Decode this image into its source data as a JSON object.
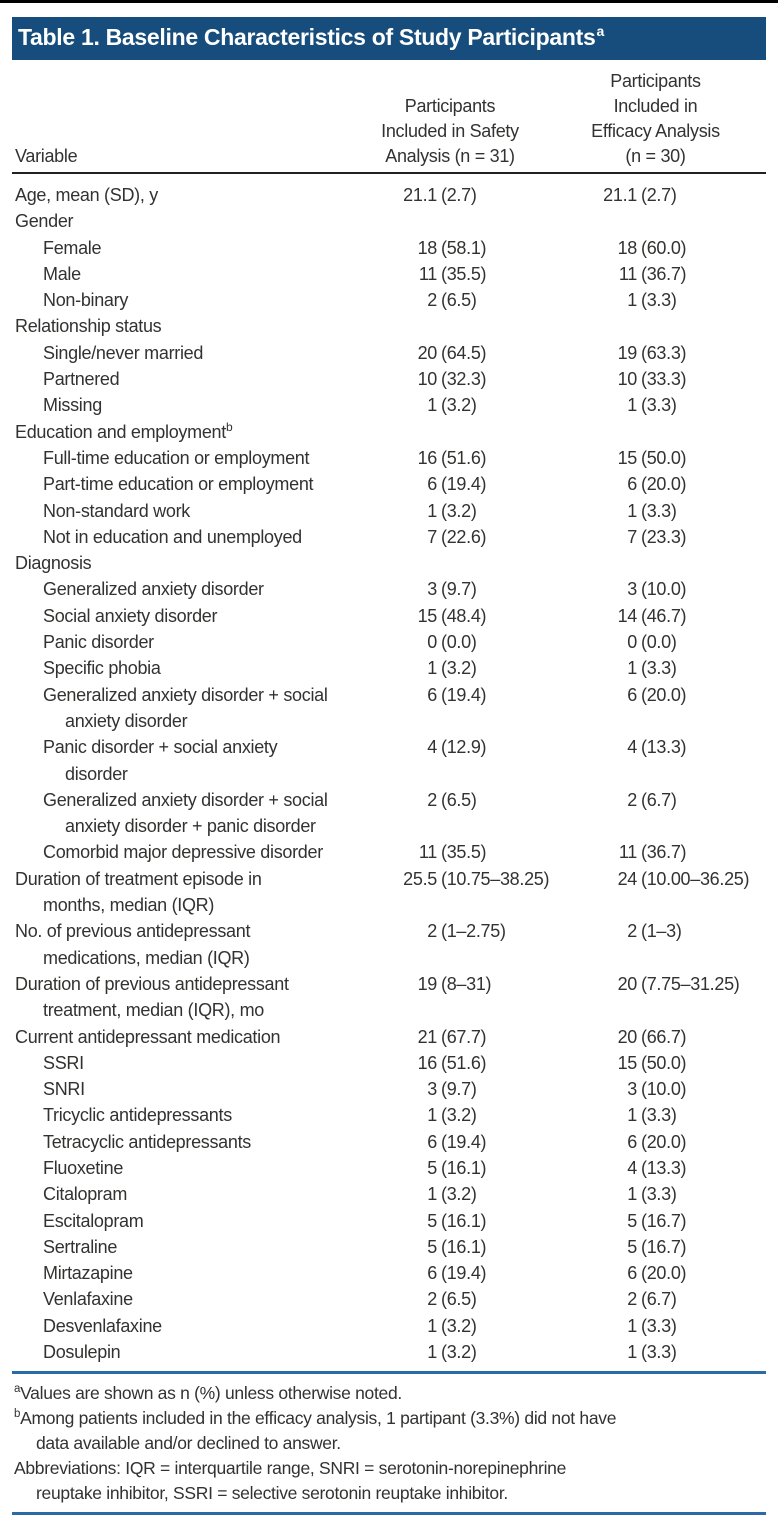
{
  "title": {
    "text": "Table 1. Baseline Characteristics of Study Participants",
    "sup": "a"
  },
  "colors": {
    "title_bar": "#174d7c",
    "rule_blue": "#2b6ba5",
    "rule_dark": "#222120",
    "text": "#333231",
    "top_strip": "#000000"
  },
  "columns": {
    "variable": "Variable",
    "safety_lines": [
      "Participants",
      "Included in Safety",
      "Analysis (n = 31)"
    ],
    "efficacy_lines": [
      "Participants",
      "Included in",
      "Efficacy Analysis",
      "(n = 30)"
    ]
  },
  "rows": [
    {
      "label_lines": [
        "Age, mean (SD), y"
      ],
      "indent": 0,
      "sup": "",
      "v1": "21.1 (2.7)",
      "v2": "21.1 (2.7)"
    },
    {
      "label_lines": [
        "Gender"
      ],
      "indent": 0,
      "sup": "",
      "v1": "",
      "v2": ""
    },
    {
      "label_lines": [
        "Female"
      ],
      "indent": 1,
      "sup": "",
      "v1": "18 (58.1)",
      "v2": "18 (60.0)"
    },
    {
      "label_lines": [
        "Male"
      ],
      "indent": 1,
      "sup": "",
      "v1": "11 (35.5)",
      "v2": "11 (36.7)"
    },
    {
      "label_lines": [
        "Non-binary"
      ],
      "indent": 1,
      "sup": "",
      "v1": "2 (6.5)",
      "v2": "1 (3.3)"
    },
    {
      "label_lines": [
        "Relationship status"
      ],
      "indent": 0,
      "sup": "",
      "v1": "",
      "v2": ""
    },
    {
      "label_lines": [
        "Single/never married"
      ],
      "indent": 1,
      "sup": "",
      "v1": "20 (64.5)",
      "v2": "19 (63.3)"
    },
    {
      "label_lines": [
        "Partnered"
      ],
      "indent": 1,
      "sup": "",
      "v1": "10 (32.3)",
      "v2": "10 (33.3)"
    },
    {
      "label_lines": [
        "Missing"
      ],
      "indent": 1,
      "sup": "",
      "v1": "1 (3.2)",
      "v2": "1 (3.3)"
    },
    {
      "label_lines": [
        "Education and employment"
      ],
      "indent": 0,
      "sup": "b",
      "v1": "",
      "v2": ""
    },
    {
      "label_lines": [
        "Full-time education or employment"
      ],
      "indent": 1,
      "sup": "",
      "v1": "16 (51.6)",
      "v2": "15 (50.0)"
    },
    {
      "label_lines": [
        "Part-time education or employment"
      ],
      "indent": 1,
      "sup": "",
      "v1": "6 (19.4)",
      "v2": "6 (20.0)"
    },
    {
      "label_lines": [
        "Non-standard work"
      ],
      "indent": 1,
      "sup": "",
      "v1": "1 (3.2)",
      "v2": "1 (3.3)"
    },
    {
      "label_lines": [
        "Not in education and unemployed"
      ],
      "indent": 1,
      "sup": "",
      "v1": "7 (22.6)",
      "v2": "7 (23.3)"
    },
    {
      "label_lines": [
        "Diagnosis"
      ],
      "indent": 0,
      "sup": "",
      "v1": "",
      "v2": ""
    },
    {
      "label_lines": [
        "Generalized anxiety disorder"
      ],
      "indent": 1,
      "sup": "",
      "v1": "3 (9.7)",
      "v2": "3 (10.0)"
    },
    {
      "label_lines": [
        "Social anxiety disorder"
      ],
      "indent": 1,
      "sup": "",
      "v1": "15 (48.4)",
      "v2": "14 (46.7)"
    },
    {
      "label_lines": [
        "Panic disorder"
      ],
      "indent": 1,
      "sup": "",
      "v1": "0 (0.0)",
      "v2": "0 (0.0)"
    },
    {
      "label_lines": [
        "Specific phobia"
      ],
      "indent": 1,
      "sup": "",
      "v1": "1 (3.2)",
      "v2": "1 (3.3)"
    },
    {
      "label_lines": [
        "Generalized anxiety disorder + social",
        "anxiety disorder"
      ],
      "indent": 1,
      "sup": "",
      "v1": "6 (19.4)",
      "v2": "6 (20.0)"
    },
    {
      "label_lines": [
        "Panic disorder + social anxiety",
        "disorder"
      ],
      "indent": 1,
      "sup": "",
      "v1": "4 (12.9)",
      "v2": "4 (13.3)"
    },
    {
      "label_lines": [
        "Generalized anxiety disorder + social",
        "anxiety disorder + panic disorder"
      ],
      "indent": 1,
      "sup": "",
      "v1": "2 (6.5)",
      "v2": "2 (6.7)"
    },
    {
      "label_lines": [
        "Comorbid major depressive disorder"
      ],
      "indent": 1,
      "sup": "",
      "v1": "11 (35.5)",
      "v2": "11 (36.7)"
    },
    {
      "label_lines": [
        "Duration of treatment episode in",
        "months, median (IQR)"
      ],
      "indent": 0,
      "sup": "",
      "v1": "25.5 (10.75–38.25)",
      "v2": "24 (10.00–36.25)"
    },
    {
      "label_lines": [
        "No. of previous antidepressant",
        "medications, median (IQR)"
      ],
      "indent": 0,
      "sup": "",
      "v1": "2 (1–2.75)",
      "v2": "2 (1–3)"
    },
    {
      "label_lines": [
        "Duration of previous antidepressant",
        "treatment, median (IQR), mo"
      ],
      "indent": 0,
      "sup": "",
      "v1": "19 (8–31)",
      "v2": "20 (7.75–31.25)"
    },
    {
      "label_lines": [
        "Current antidepressant medication"
      ],
      "indent": 0,
      "sup": "",
      "v1": "21 (67.7)",
      "v2": "20 (66.7)"
    },
    {
      "label_lines": [
        "SSRI"
      ],
      "indent": 1,
      "sup": "",
      "v1": "16 (51.6)",
      "v2": "15 (50.0)"
    },
    {
      "label_lines": [
        "SNRI"
      ],
      "indent": 1,
      "sup": "",
      "v1": "3 (9.7)",
      "v2": "3 (10.0)"
    },
    {
      "label_lines": [
        "Tricyclic antidepressants"
      ],
      "indent": 1,
      "sup": "",
      "v1": "1 (3.2)",
      "v2": "1 (3.3)"
    },
    {
      "label_lines": [
        "Tetracyclic antidepressants"
      ],
      "indent": 1,
      "sup": "",
      "v1": "6 (19.4)",
      "v2": "6 (20.0)"
    },
    {
      "label_lines": [
        "Fluoxetine"
      ],
      "indent": 1,
      "sup": "",
      "v1": "5 (16.1)",
      "v2": "4 (13.3)"
    },
    {
      "label_lines": [
        "Citalopram"
      ],
      "indent": 1,
      "sup": "",
      "v1": "1 (3.2)",
      "v2": "1 (3.3)"
    },
    {
      "label_lines": [
        "Escitalopram"
      ],
      "indent": 1,
      "sup": "",
      "v1": "5 (16.1)",
      "v2": "5 (16.7)"
    },
    {
      "label_lines": [
        "Sertraline"
      ],
      "indent": 1,
      "sup": "",
      "v1": "5 (16.1)",
      "v2": "5 (16.7)"
    },
    {
      "label_lines": [
        "Mirtazapine"
      ],
      "indent": 1,
      "sup": "",
      "v1": "6 (19.4)",
      "v2": "6 (20.0)"
    },
    {
      "label_lines": [
        "Venlafaxine"
      ],
      "indent": 1,
      "sup": "",
      "v1": "2 (6.5)",
      "v2": "2 (6.7)"
    },
    {
      "label_lines": [
        "Desvenlafaxine"
      ],
      "indent": 1,
      "sup": "",
      "v1": "1 (3.2)",
      "v2": "1 (3.3)"
    },
    {
      "label_lines": [
        "Dosulepin"
      ],
      "indent": 1,
      "sup": "",
      "v1": "1 (3.2)",
      "v2": "1 (3.3)"
    }
  ],
  "footnotes": [
    {
      "sup": "a",
      "lines": [
        "Values are shown as n (%) unless otherwise noted."
      ]
    },
    {
      "sup": "b",
      "lines": [
        "Among patients included in the efficacy analysis, 1 partipant (3.3%) did not have",
        "data available and/or declined to answer."
      ]
    },
    {
      "sup": "",
      "lines": [
        "Abbreviations: IQR = interquartile range, SNRI = serotonin-norepinephrine",
        "reuptake inhibitor, SSRI = selective serotonin reuptake inhibitor."
      ]
    }
  ]
}
